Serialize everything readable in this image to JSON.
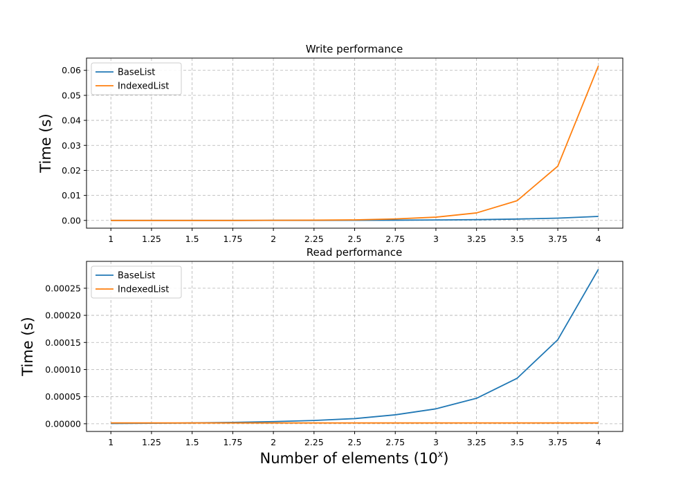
{
  "chart_data": [
    {
      "type": "line",
      "title": "Write performance",
      "ylabel": "Time (s)",
      "xlabel": "",
      "x": [
        1,
        1.25,
        1.5,
        1.75,
        2,
        2.25,
        2.5,
        2.75,
        3,
        3.25,
        3.5,
        3.75,
        4
      ],
      "x_tick_labels": [
        "1",
        "1.25",
        "1.5",
        "1.75",
        "2",
        "2.25",
        "2.5",
        "2.75",
        "3",
        "3.25",
        "3.5",
        "3.75",
        "4"
      ],
      "y_ticks": [
        0.0,
        0.01,
        0.02,
        0.03,
        0.04,
        0.05,
        0.06
      ],
      "y_tick_labels": [
        "0.00",
        "0.01",
        "0.02",
        "0.03",
        "0.04",
        "0.05",
        "0.06"
      ],
      "xlim": [
        0.85,
        4.15
      ],
      "ylim": [
        -0.0031,
        0.0649
      ],
      "grid": true,
      "legend": "upper left",
      "series": [
        {
          "name": "BaseList",
          "color": "#1f77b4",
          "values": [
            0.0,
            0.0,
            0.0,
            0.0,
            2e-05,
            3e-05,
            5e-05,
            0.0001,
            0.00018,
            0.0003,
            0.00055,
            0.0009,
            0.0016
          ]
        },
        {
          "name": "IndexedList",
          "color": "#ff7f0e",
          "values": [
            0.0,
            0.0,
            0.0,
            0.0,
            5e-05,
            0.0001,
            0.0002,
            0.0006,
            0.0013,
            0.003,
            0.0079,
            0.0217,
            0.0618
          ]
        }
      ]
    },
    {
      "type": "line",
      "title": "Read performance",
      "ylabel": "Time (s)",
      "xlabel": "Number of elements (10",
      "xlabel_sup": "x",
      "xlabel_end": ")",
      "x": [
        1,
        1.25,
        1.5,
        1.75,
        2,
        2.25,
        2.5,
        2.75,
        3,
        3.25,
        3.5,
        3.75,
        4
      ],
      "x_tick_labels": [
        "1",
        "1.25",
        "1.5",
        "1.75",
        "2",
        "2.25",
        "2.5",
        "2.75",
        "3",
        "3.25",
        "3.5",
        "3.75",
        "4"
      ],
      "y_ticks": [
        0.0,
        5e-05,
        0.0001,
        0.00015,
        0.0002,
        0.00025
      ],
      "y_tick_labels": [
        "0.00000",
        "0.00005",
        "0.00010",
        "0.00015",
        "0.00020",
        "0.00025"
      ],
      "xlim": [
        0.85,
        4.15
      ],
      "ylim": [
        -1.42e-05,
        0.0002996
      ],
      "grid": true,
      "legend": "upper left",
      "series": [
        {
          "name": "BaseList",
          "color": "#1f77b4",
          "values": [
            5e-07,
            1e-06,
            1.5e-06,
            2.5e-06,
            4e-06,
            6e-06,
            9.5e-06,
            1.65e-05,
            2.75e-05,
            4.7e-05,
            8.4e-05,
            0.000155,
            0.000285
          ]
        },
        {
          "name": "IndexedList",
          "color": "#ff7f0e",
          "values": [
            1.5e-06,
            1.5e-06,
            1.5e-06,
            1.5e-06,
            1.5e-06,
            1.5e-06,
            1.5e-06,
            1.5e-06,
            1.5e-06,
            1.5e-06,
            1.5e-06,
            1.5e-06,
            1.5e-06
          ]
        }
      ]
    }
  ]
}
